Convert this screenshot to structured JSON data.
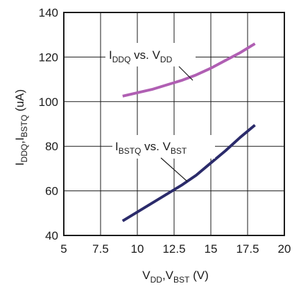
{
  "chart_data": {
    "type": "line",
    "xlabel": {
      "main1": "V",
      "sub1": "DD",
      "sep": ",V",
      "sub2": "BST",
      "unit": " (V)"
    },
    "ylabel": {
      "main1": "I",
      "sub1": "DDQ",
      "sep": ",I",
      "sub2": "BSTQ",
      "unit": " (uA)"
    },
    "xlim": [
      5,
      20
    ],
    "ylim": [
      40,
      140
    ],
    "xticks": [
      5,
      7.5,
      10,
      12.5,
      15,
      17.5,
      20
    ],
    "yticks": [
      40,
      60,
      80,
      100,
      120,
      140
    ],
    "xtick_labels": [
      "5",
      "7.5",
      "10",
      "12.5",
      "15",
      "17.5",
      "20"
    ],
    "ytick_labels": [
      "40",
      "60",
      "80",
      "100",
      "120",
      "140"
    ],
    "grid": true,
    "series": [
      {
        "id": "iddq",
        "color": "#b05fb3",
        "x": [
          9,
          10,
          11,
          12,
          13,
          14,
          15,
          16,
          17,
          18
        ],
        "y": [
          102.5,
          104,
          105.5,
          107.5,
          109.5,
          112,
          115,
          118.5,
          122,
          126
        ],
        "label": {
          "main": "I",
          "sub": "DDQ",
          "mid": " vs. V",
          "sub2": "DD"
        }
      },
      {
        "id": "ibstq",
        "color": "#2b2b6b",
        "x": [
          9,
          10,
          11,
          12,
          13,
          14,
          15,
          16,
          17,
          18
        ],
        "y": [
          46.5,
          50.5,
          54.5,
          58.5,
          62.5,
          67,
          72.5,
          78,
          84,
          89.5
        ],
        "label": {
          "main": "I",
          "sub": "BSTQ",
          "mid": " vs. V",
          "sub2": "BST"
        }
      }
    ]
  }
}
